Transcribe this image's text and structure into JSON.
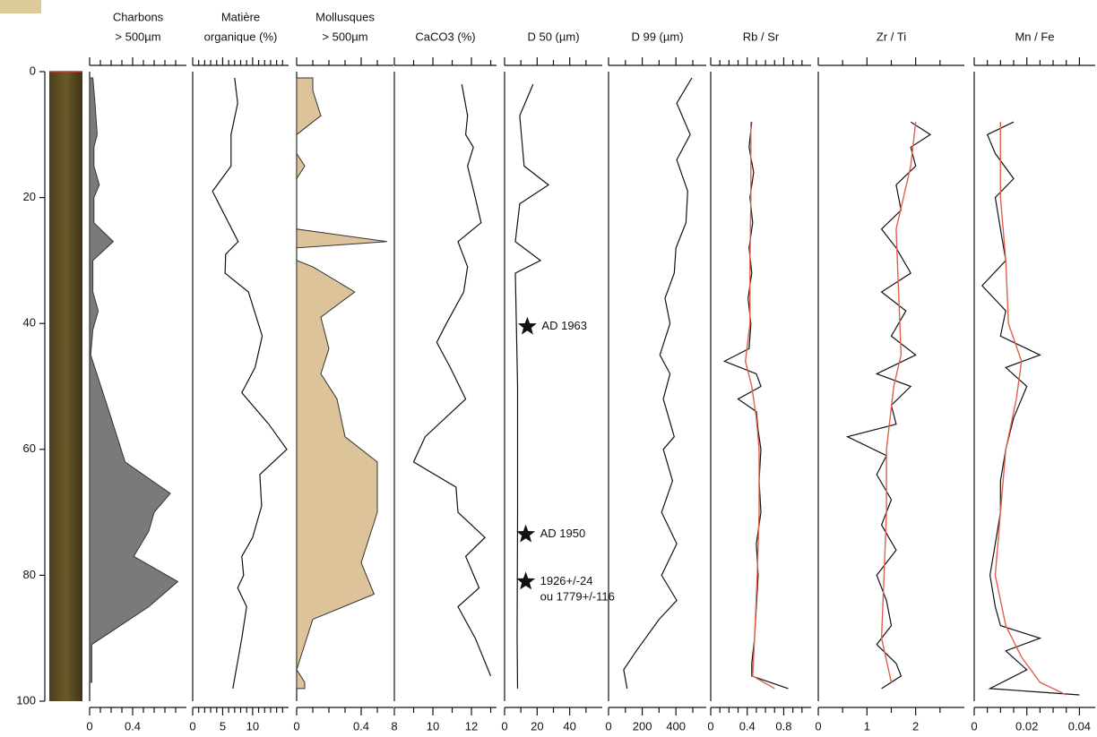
{
  "depth_axis": {
    "ylim": [
      0,
      100
    ],
    "yticks": [
      0,
      20,
      40,
      60,
      80,
      100
    ]
  },
  "chart_data": [
    {
      "type": "area",
      "title": [
        "Charbons",
        "> 500µm"
      ],
      "color": "#7a7a7a",
      "xlim": [
        0,
        0.9
      ],
      "xticks": [
        0,
        0.4
      ],
      "xminorticks": [
        0.1,
        0.2,
        0.3,
        0.5,
        0.6,
        0.7,
        0.8
      ],
      "series": [
        {
          "color": "#7a7a7a",
          "depths": [
            1,
            5,
            10,
            12,
            15,
            18,
            20,
            24,
            27,
            30,
            35,
            38,
            41,
            45,
            55,
            62,
            67,
            70,
            73,
            77,
            81,
            85,
            91,
            97
          ],
          "values": [
            0.03,
            0.05,
            0.07,
            0.04,
            0.04,
            0.09,
            0.04,
            0.04,
            0.22,
            0.03,
            0.03,
            0.08,
            0.03,
            0.01,
            0.2,
            0.33,
            0.75,
            0.6,
            0.55,
            0.41,
            0.82,
            0.55,
            0.02,
            0.02
          ]
        }
      ]
    },
    {
      "type": "line",
      "title": [
        "Matière",
        "organique (%)"
      ],
      "xlim": [
        0,
        16
      ],
      "xticks": [
        0,
        5,
        10
      ],
      "xminorticks": [
        1,
        2,
        3,
        4,
        6,
        7,
        8,
        9,
        11,
        12,
        13,
        14,
        15
      ],
      "series": [
        {
          "color": "#111111",
          "depths": [
            1,
            5,
            10,
            15,
            19,
            22,
            27,
            29,
            32,
            35,
            42,
            47,
            51,
            56,
            60,
            64,
            69,
            74,
            77,
            80,
            82,
            85,
            90,
            98
          ],
          "values": [
            7,
            7.5,
            6.4,
            6.4,
            3.3,
            4.9,
            7.6,
            5.5,
            5.4,
            9.3,
            11.6,
            10.4,
            8.2,
            12.7,
            15.7,
            11.2,
            11.5,
            10,
            8.2,
            8.5,
            7.5,
            9,
            8.2,
            6.7
          ]
        }
      ]
    },
    {
      "type": "area",
      "title": [
        "Mollusques",
        "> 500µm"
      ],
      "xlim": [
        0,
        0.6
      ],
      "xticks": [
        0,
        0.4
      ],
      "xminorticks": [
        0.1,
        0.2,
        0.3,
        0.5
      ],
      "series": [
        {
          "color": "#dcc39a",
          "depths": [
            1,
            3,
            7,
            10,
            13,
            15,
            17,
            25,
            27,
            28,
            30,
            31,
            35,
            39,
            44,
            48,
            52,
            58,
            62,
            70,
            78,
            83,
            87,
            95,
            97,
            98
          ],
          "values": [
            0.1,
            0.1,
            0.15,
            0,
            0,
            0.05,
            0,
            0,
            0.56,
            0,
            0,
            0.1,
            0.36,
            0.15,
            0.2,
            0.15,
            0.25,
            0.3,
            0.5,
            0.5,
            0.4,
            0.48,
            0.1,
            0,
            0.05,
            0.05
          ]
        }
      ]
    },
    {
      "type": "line",
      "title": [
        "",
        "CaCO3 (%)"
      ],
      "xlim": [
        8,
        13.3
      ],
      "xticks": [
        8,
        10,
        12
      ],
      "xminorticks": [
        9,
        11,
        13
      ],
      "series": [
        {
          "color": "#111111",
          "depths": [
            2,
            7,
            10,
            12,
            15,
            20,
            24,
            27,
            31,
            35,
            40,
            43,
            47,
            52,
            58,
            62,
            66,
            70,
            74,
            77,
            82,
            85,
            90,
            96
          ],
          "values": [
            11.5,
            11.8,
            11.7,
            12.1,
            11.8,
            12.2,
            12.5,
            11.3,
            11.8,
            11.6,
            10.7,
            10.2,
            10.9,
            11.7,
            9.6,
            9,
            11.2,
            11.3,
            12.7,
            11.7,
            12.4,
            11.3,
            12.2,
            13
          ]
        }
      ]
    },
    {
      "type": "line",
      "title": [
        "",
        "D 50 (µm)"
      ],
      "xlim": [
        0,
        60
      ],
      "xticks": [
        0,
        20,
        40
      ],
      "xminorticks": [
        10,
        30,
        50
      ],
      "series": [
        {
          "color": "#111111",
          "depths": [
            2,
            7,
            15,
            18,
            21,
            27,
            30,
            32,
            50,
            70,
            90,
            98
          ],
          "values": [
            17.5,
            9.3,
            12,
            27,
            9.3,
            6.6,
            22,
            6.6,
            8,
            8,
            7.7,
            8
          ]
        }
      ],
      "annotations": [
        {
          "text": "AD 1963",
          "x": 14,
          "y": 40.5
        },
        {
          "text": "AD 1950",
          "x": 13,
          "y": 73.5
        },
        {
          "text": "1926+/-24",
          "x": 13,
          "y": 81
        },
        {
          "text": "ou 1779+/-116",
          "x": 13,
          "y": 83.5
        }
      ]
    },
    {
      "type": "line",
      "title": [
        "",
        "D 99 (µm)"
      ],
      "xlim": [
        0,
        580
      ],
      "xticks": [
        0,
        200,
        400
      ],
      "xminorticks": [
        100,
        300,
        500
      ],
      "series": [
        {
          "color": "#111111",
          "depths": [
            1,
            5,
            10,
            14,
            19,
            24,
            28,
            32,
            36,
            40,
            45,
            48,
            52,
            58,
            60,
            65,
            70,
            75,
            80,
            84,
            87,
            92,
            95,
            98
          ],
          "values": [
            495,
            405,
            485,
            405,
            470,
            460,
            400,
            390,
            335,
            365,
            305,
            365,
            325,
            390,
            325,
            380,
            315,
            405,
            315,
            405,
            300,
            165,
            90,
            110
          ]
        }
      ]
    },
    {
      "type": "line",
      "title": [
        "",
        "Rb / Sr"
      ],
      "xlim": [
        0,
        1.1
      ],
      "xticks": [
        0,
        0.4,
        0.8
      ],
      "xminorticks": [
        0.1,
        0.2,
        0.3,
        0.5,
        0.6,
        0.7,
        0.9,
        1.0
      ],
      "series": [
        {
          "color": "#111111",
          "depths": [
            8,
            12,
            16,
            20,
            24,
            28,
            32,
            36,
            40,
            44,
            46,
            48,
            50,
            52,
            54,
            57,
            60,
            65,
            70,
            75,
            80,
            85,
            90,
            94,
            96,
            98
          ],
          "values": [
            0.45,
            0.42,
            0.47,
            0.43,
            0.46,
            0.42,
            0.45,
            0.41,
            0.44,
            0.42,
            0.15,
            0.5,
            0.55,
            0.3,
            0.5,
            0.52,
            0.55,
            0.53,
            0.55,
            0.5,
            0.52,
            0.5,
            0.48,
            0.45,
            0.45,
            0.85
          ]
        },
        {
          "color": "#e0604a",
          "depths": [
            8,
            20,
            30,
            40,
            46,
            50,
            55,
            60,
            70,
            80,
            90,
            96,
            98
          ],
          "values": [
            0.44,
            0.44,
            0.43,
            0.43,
            0.38,
            0.45,
            0.5,
            0.53,
            0.53,
            0.51,
            0.48,
            0.46,
            0.7
          ]
        }
      ]
    },
    {
      "type": "line",
      "title": [
        "",
        "Zr / Ti"
      ],
      "xlim": [
        0,
        3
      ],
      "xticks": [
        0,
        1,
        2
      ],
      "xminorticks": [
        0.5,
        1.5,
        2.5
      ],
      "series": [
        {
          "color": "#111111",
          "depths": [
            8,
            10,
            12,
            15,
            18,
            22,
            25,
            28,
            32,
            35,
            38,
            42,
            45,
            48,
            50,
            53,
            56,
            58,
            61,
            64,
            68,
            72,
            76,
            80,
            84,
            88,
            91,
            94,
            96,
            98
          ],
          "values": [
            1.9,
            2.3,
            1.9,
            2.0,
            1.6,
            1.7,
            1.3,
            1.6,
            1.9,
            1.3,
            1.8,
            1.5,
            2.0,
            1.2,
            1.9,
            1.5,
            1.6,
            0.6,
            1.4,
            1.2,
            1.5,
            1.3,
            1.6,
            1.2,
            1.4,
            1.5,
            1.2,
            1.6,
            1.7,
            1.3
          ]
        },
        {
          "color": "#e0604a",
          "depths": [
            8,
            15,
            25,
            35,
            45,
            50,
            60,
            70,
            80,
            90,
            97
          ],
          "values": [
            2.0,
            1.9,
            1.6,
            1.65,
            1.7,
            1.55,
            1.4,
            1.4,
            1.35,
            1.3,
            1.5
          ]
        }
      ]
    },
    {
      "type": "line",
      "title": [
        "",
        "Mn / Fe"
      ],
      "xlim": [
        0,
        0.046
      ],
      "xticks": [
        0,
        0.02,
        0.04
      ],
      "xminorticks": [
        0.005,
        0.01,
        0.015,
        0.025,
        0.03,
        0.035
      ],
      "series": [
        {
          "color": "#111111",
          "depths": [
            8,
            10,
            13,
            17,
            20,
            25,
            30,
            34,
            38,
            42,
            45,
            47,
            50,
            55,
            60,
            65,
            70,
            75,
            80,
            85,
            88,
            90,
            92,
            95,
            98,
            99
          ],
          "values": [
            0.015,
            0.005,
            0.008,
            0.015,
            0.008,
            0.01,
            0.012,
            0.003,
            0.012,
            0.01,
            0.025,
            0.012,
            0.02,
            0.015,
            0.012,
            0.01,
            0.01,
            0.008,
            0.006,
            0.008,
            0.01,
            0.025,
            0.012,
            0.02,
            0.006,
            0.04
          ]
        },
        {
          "color": "#e0604a",
          "depths": [
            8,
            20,
            30,
            40,
            46,
            52,
            60,
            70,
            80,
            88,
            93,
            97,
            99
          ],
          "values": [
            0.01,
            0.01,
            0.012,
            0.013,
            0.018,
            0.016,
            0.012,
            0.01,
            0.008,
            0.012,
            0.018,
            0.025,
            0.035
          ]
        }
      ]
    }
  ]
}
